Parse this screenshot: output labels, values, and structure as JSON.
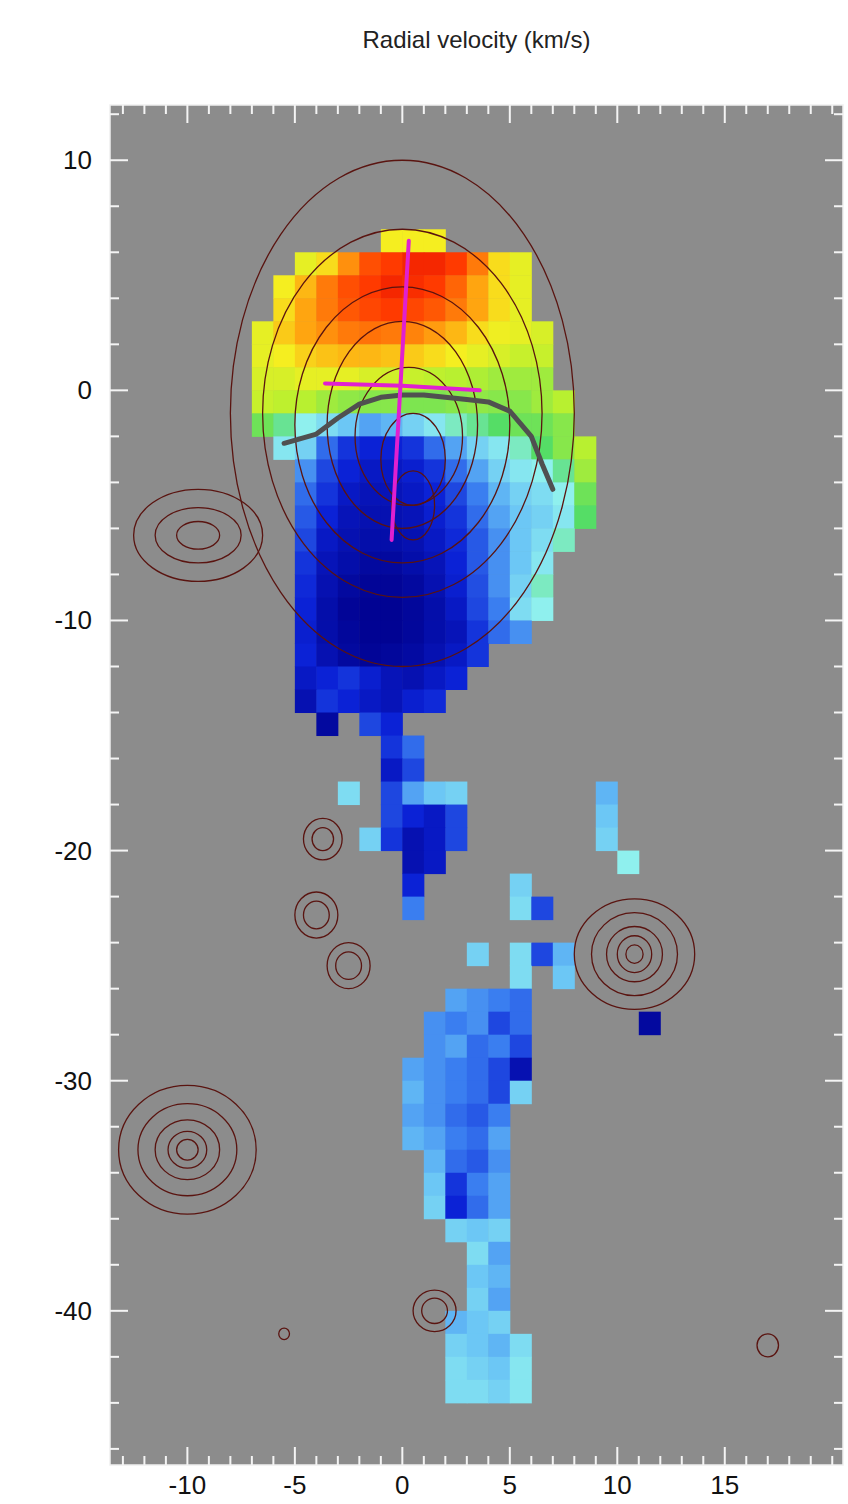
{
  "chart_data": {
    "type": "heatmap",
    "title": "Radial velocity (km/s)",
    "xlim": [
      -13.6,
      20.5
    ],
    "ylim": [
      -46.7,
      12.4
    ],
    "xticks": [
      -10,
      -5,
      0,
      5,
      10,
      15
    ],
    "yticks": [
      10,
      0,
      -10,
      -20,
      -30,
      -40
    ],
    "xminorticks": [
      -13,
      -12,
      -11,
      -9,
      -8,
      -7,
      -6,
      -4,
      -3,
      -2,
      -1,
      1,
      2,
      3,
      4,
      6,
      7,
      8,
      9,
      11,
      12,
      13,
      14,
      16,
      17,
      18,
      19,
      20
    ],
    "yminorticks": [
      12,
      8,
      6,
      4,
      2,
      -2,
      -4,
      -6,
      -8,
      -12,
      -14,
      -16,
      -18,
      -22,
      -24,
      -26,
      -28,
      -32,
      -34,
      -36,
      -38,
      -42,
      -44,
      -46
    ],
    "grid": false,
    "vlim": [
      -100,
      100
    ],
    "rows": [
      {
        "y": 6,
        "x0": -1,
        "values": [
          40,
          40,
          40
        ]
      },
      {
        "y": 5,
        "x0": -5,
        "values": [
          35,
          45,
          65,
          80,
          85,
          90,
          90,
          85,
          70,
          45,
          35
        ]
      },
      {
        "y": 4,
        "x0": -6,
        "values": [
          40,
          55,
          70,
          80,
          85,
          90,
          88,
          85,
          75,
          60,
          45,
          35
        ]
      },
      {
        "y": 3,
        "x0": -6,
        "values": [
          45,
          60,
          70,
          78,
          82,
          85,
          82,
          78,
          70,
          60,
          45,
          35
        ]
      },
      {
        "y": 2,
        "x0": -7,
        "values": [
          35,
          50,
          60,
          65,
          70,
          72,
          70,
          68,
          62,
          55,
          45,
          38,
          35,
          30
        ]
      },
      {
        "y": 1,
        "x0": -7,
        "values": [
          35,
          40,
          48,
          52,
          55,
          55,
          52,
          50,
          45,
          40,
          35,
          30,
          25,
          25
        ]
      },
      {
        "y": 0,
        "x0": -7,
        "values": [
          30,
          30,
          35,
          35,
          35,
          30,
          28,
          25,
          22,
          20,
          18,
          15,
          15,
          15
        ]
      },
      {
        "y": -1,
        "x0": -7,
        "values": [
          25,
          22,
          20,
          15,
          12,
          10,
          10,
          8,
          8,
          10,
          12,
          10,
          10,
          15,
          20
        ]
      },
      {
        "y": -2,
        "x0": -7,
        "values": [
          5,
          -5,
          -15,
          -25,
          -35,
          -45,
          -40,
          -30,
          -20,
          -10,
          -5,
          0,
          5,
          5,
          10
        ]
      },
      {
        "y": -3,
        "x0": -6,
        "values": [
          -20,
          -30,
          -60,
          -75,
          -80,
          -80,
          -75,
          -60,
          -45,
          -30,
          -20,
          -10,
          0,
          10,
          20
        ]
      },
      {
        "y": -4,
        "x0": -5,
        "values": [
          -50,
          -70,
          -80,
          -85,
          -85,
          -82,
          -75,
          -60,
          -45,
          -30,
          -20,
          -15,
          -5,
          15
        ]
      },
      {
        "y": -5,
        "x0": -5,
        "values": [
          -60,
          -75,
          -85,
          -88,
          -88,
          -85,
          -80,
          -70,
          -55,
          -40,
          -30,
          -25,
          -15,
          5
        ]
      },
      {
        "y": -6,
        "x0": -5,
        "values": [
          -65,
          -80,
          -88,
          -90,
          -90,
          -88,
          -82,
          -75,
          -60,
          -45,
          -35,
          -30,
          -20,
          0
        ]
      },
      {
        "y": -7,
        "x0": -5,
        "values": [
          -70,
          -85,
          -90,
          -92,
          -92,
          -90,
          -85,
          -78,
          -65,
          -50,
          -35,
          -25,
          -10
        ]
      },
      {
        "y": -8,
        "x0": -5,
        "values": [
          -75,
          -88,
          -92,
          -95,
          -95,
          -92,
          -88,
          -80,
          -65,
          -50,
          -35,
          -20
        ]
      },
      {
        "y": -9,
        "x0": -5,
        "values": [
          -78,
          -90,
          -95,
          -97,
          -97,
          -95,
          -90,
          -82,
          -68,
          -50,
          -30,
          -10
        ]
      },
      {
        "y": -10,
        "x0": -5,
        "values": [
          -80,
          -92,
          -97,
          -98,
          -98,
          -96,
          -92,
          -85,
          -70,
          -55,
          -25,
          -15
        ]
      },
      {
        "y": -11,
        "x0": -5,
        "values": [
          -82,
          -92,
          -96,
          -98,
          -98,
          -96,
          -92,
          -88,
          -75,
          -60,
          -50
        ]
      },
      {
        "y": -12,
        "x0": -5,
        "values": [
          -80,
          -90,
          -95,
          -97,
          -96,
          -94,
          -90,
          -85,
          -75
        ]
      },
      {
        "y": -13,
        "x0": -5,
        "values": [
          -85,
          -80,
          -75,
          -82,
          -88,
          -90,
          -85,
          -80
        ]
      },
      {
        "y": -14,
        "x0": -5,
        "values": [
          -90,
          -75,
          -80,
          -85,
          -88,
          -82,
          -78
        ]
      },
      {
        "y": -15,
        "x0": -4,
        "values": [
          -95,
          null,
          -70,
          -80
        ]
      },
      {
        "y": -16,
        "x0": -1,
        "values": [
          -75,
          -60
        ]
      },
      {
        "y": -17,
        "x0": -1,
        "values": [
          -85,
          -70
        ]
      },
      {
        "y": -18,
        "x0": -3,
        "values": [
          -25,
          null,
          -70,
          -45,
          -35,
          -30,
          null,
          null,
          null,
          null,
          null,
          null,
          -40
        ]
      },
      {
        "y": -19,
        "x0": -1,
        "values": [
          -70,
          -80,
          -85,
          -70,
          null,
          null,
          null,
          null,
          null,
          null,
          -35
        ]
      },
      {
        "y": -20,
        "x0": -2,
        "values": [
          -30,
          -75,
          -90,
          -85,
          -70,
          null,
          null,
          null,
          null,
          null,
          null,
          -30
        ]
      },
      {
        "y": -21,
        "x0": 0,
        "values": [
          -90,
          -85,
          null,
          null,
          null,
          null,
          null,
          null,
          null,
          null,
          -15
        ]
      },
      {
        "y": -22,
        "x0": 0,
        "values": [
          -80,
          null,
          null,
          null,
          null,
          -30
        ]
      },
      {
        "y": -23,
        "x0": 0,
        "values": [
          -55,
          null,
          null,
          null,
          null,
          -25,
          -70
        ]
      },
      {
        "y": -25,
        "x0": 3,
        "values": [
          -30,
          null,
          -25,
          -70,
          -40
        ]
      },
      {
        "y": -26,
        "x0": 5,
        "values": [
          -25,
          null,
          -35
        ]
      },
      {
        "y": -27,
        "x0": 2,
        "values": [
          -45,
          -50,
          -55,
          -60
        ]
      },
      {
        "y": -28,
        "x0": 1,
        "values": [
          -50,
          -55,
          -50,
          -70,
          -60,
          null,
          null,
          null,
          null,
          null,
          -95
        ]
      },
      {
        "y": -29,
        "x0": 1,
        "values": [
          -50,
          -45,
          -60,
          -55,
          -70
        ]
      },
      {
        "y": -30,
        "x0": 0,
        "values": [
          -45,
          -50,
          -55,
          -60,
          -70,
          -90
        ]
      },
      {
        "y": -31,
        "x0": 0,
        "values": [
          -40,
          -50,
          -55,
          -60,
          -70,
          -30
        ]
      },
      {
        "y": -32,
        "x0": 0,
        "values": [
          -45,
          -50,
          -60,
          -65,
          -55
        ]
      },
      {
        "y": -33,
        "x0": 0,
        "values": [
          -40,
          -45,
          -55,
          -60,
          -45
        ]
      },
      {
        "y": -34,
        "x0": 1,
        "values": [
          -40,
          -60,
          -65,
          -50
        ]
      },
      {
        "y": -35,
        "x0": 1,
        "values": [
          -35,
          -75,
          -55,
          -45
        ]
      },
      {
        "y": -36,
        "x0": 1,
        "values": [
          -30,
          -80,
          -60,
          -45
        ]
      },
      {
        "y": -37,
        "x0": 2,
        "values": [
          -30,
          -35,
          -30
        ]
      },
      {
        "y": -38,
        "x0": 3,
        "values": [
          -25,
          -45
        ]
      },
      {
        "y": -39,
        "x0": 3,
        "values": [
          -35,
          -40
        ]
      },
      {
        "y": -40,
        "x0": 3,
        "values": [
          -30,
          -45
        ]
      },
      {
        "y": -41,
        "x0": 2,
        "values": [
          -40,
          -35,
          -30
        ]
      },
      {
        "y": -42,
        "x0": 2,
        "values": [
          -30,
          -35,
          -40,
          -25
        ]
      },
      {
        "y": -43,
        "x0": 2,
        "values": [
          -25,
          -30,
          -35,
          -20
        ]
      },
      {
        "y": -44,
        "x0": 2,
        "values": [
          -25,
          -25,
          -30,
          -20
        ]
      }
    ],
    "contours": [
      {
        "cx": 0,
        "cy": -1,
        "rx": 8,
        "ry": 11
      },
      {
        "cx": 0,
        "cy": -1,
        "rx": 6.5,
        "ry": 8
      },
      {
        "cx": 0,
        "cy": -1.5,
        "rx": 5,
        "ry": 6
      },
      {
        "cx": 0,
        "cy": -1.5,
        "rx": 3.5,
        "ry": 4.5
      },
      {
        "cx": 0.3,
        "cy": -2,
        "rx": 2.5,
        "ry": 3
      },
      {
        "cx": 0.5,
        "cy": -3,
        "rx": 1.5,
        "ry": 2
      },
      {
        "cx": 0.5,
        "cy": -5,
        "rx": 1,
        "ry": 1.5
      },
      {
        "cx": -9.5,
        "cy": -6.3,
        "rx": 3,
        "ry": 2
      },
      {
        "cx": -9.5,
        "cy": -6.3,
        "rx": 2,
        "ry": 1.2
      },
      {
        "cx": -9.5,
        "cy": -6.3,
        "rx": 1,
        "ry": 0.6
      },
      {
        "cx": -3.7,
        "cy": -19.5,
        "rx": 0.9,
        "ry": 0.9
      },
      {
        "cx": -3.7,
        "cy": -19.5,
        "rx": 0.5,
        "ry": 0.5
      },
      {
        "cx": -4,
        "cy": -22.8,
        "rx": 1,
        "ry": 1
      },
      {
        "cx": -4,
        "cy": -22.8,
        "rx": 0.6,
        "ry": 0.6
      },
      {
        "cx": -2.5,
        "cy": -25,
        "rx": 1,
        "ry": 1
      },
      {
        "cx": -2.5,
        "cy": -25,
        "rx": 0.6,
        "ry": 0.6
      },
      {
        "cx": 10.8,
        "cy": -24.5,
        "rx": 2.8,
        "ry": 2.4
      },
      {
        "cx": 10.8,
        "cy": -24.5,
        "rx": 2,
        "ry": 1.8
      },
      {
        "cx": 10.8,
        "cy": -24.5,
        "rx": 1.3,
        "ry": 1.2
      },
      {
        "cx": 10.8,
        "cy": -24.5,
        "rx": 0.8,
        "ry": 0.8
      },
      {
        "cx": 10.8,
        "cy": -24.5,
        "rx": 0.4,
        "ry": 0.4
      },
      {
        "cx": -10,
        "cy": -33,
        "rx": 3.2,
        "ry": 2.8
      },
      {
        "cx": -10,
        "cy": -33,
        "rx": 2.3,
        "ry": 2
      },
      {
        "cx": -10,
        "cy": -33,
        "rx": 1.5,
        "ry": 1.3
      },
      {
        "cx": -10,
        "cy": -33,
        "rx": 0.9,
        "ry": 0.8
      },
      {
        "cx": -10,
        "cy": -33,
        "rx": 0.5,
        "ry": 0.45
      },
      {
        "cx": 1.5,
        "cy": -40,
        "rx": 1,
        "ry": 0.9
      },
      {
        "cx": 1.5,
        "cy": -40,
        "rx": 0.6,
        "ry": 0.55
      },
      {
        "cx": 17,
        "cy": -41.5,
        "rx": 0.5,
        "ry": 0.5
      },
      {
        "cx": -5.5,
        "cy": -41,
        "rx": 0.25,
        "ry": 0.25
      }
    ],
    "kinematic_axes": [
      {
        "x": [
          0.3,
          -0.5
        ],
        "y": [
          6.5,
          -6.5
        ]
      },
      {
        "x": [
          -3.6,
          0,
          3.6
        ],
        "y": [
          0.3,
          0.2,
          0
        ]
      }
    ],
    "zero_velocity_curve": {
      "x": [
        -5.5,
        -4,
        -3,
        -2,
        -1,
        0,
        1,
        2,
        3,
        4,
        5,
        6,
        6.5,
        7
      ],
      "y": [
        -2.3,
        -1.9,
        -1.2,
        -0.6,
        -0.3,
        -0.2,
        -0.2,
        -0.3,
        -0.4,
        -0.5,
        -0.9,
        -2,
        -3.2,
        -4.3
      ]
    }
  }
}
